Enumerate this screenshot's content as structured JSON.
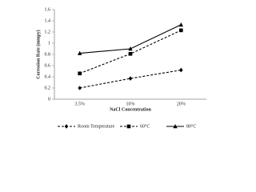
{
  "chart_data": {
    "type": "line",
    "x_label": "NaCl Concentration",
    "y_label": "Corrosion Rate (mmpy)",
    "categories": [
      "3.5%",
      "10%",
      "20%"
    ],
    "series": [
      {
        "name": "Room Temperature",
        "color": "#000000",
        "dashed": true,
        "marker": "diamond",
        "values": [
          0.2,
          0.37,
          0.52
        ]
      },
      {
        "name": "60°C",
        "color": "#000000",
        "dashed": true,
        "marker": "square",
        "values": [
          0.46,
          0.81,
          1.23
        ]
      },
      {
        "name": "80°C",
        "color": "#000000",
        "dashed": false,
        "marker": "triangle",
        "values": [
          0.82,
          0.9,
          1.33
        ]
      }
    ],
    "ylim": [
      0,
      1.6
    ],
    "yticks": [
      0,
      0.2,
      0.4,
      0.6,
      0.8,
      1,
      1.2,
      1.4,
      1.6
    ],
    "grid": false,
    "legend": "bottom"
  }
}
